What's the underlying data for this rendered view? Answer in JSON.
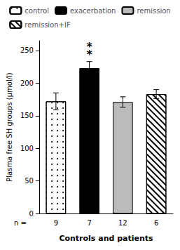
{
  "chart_data": {
    "type": "bar",
    "categories": [
      "control",
      "exacerbation",
      "remission",
      "remission+IF"
    ],
    "values": [
      172,
      223,
      171,
      183
    ],
    "errors": [
      13,
      10,
      8,
      7
    ],
    "colors": [
      "white",
      "black",
      "#bbbbbb",
      "white"
    ],
    "n_label": "n =",
    "n_values": [
      9,
      7,
      12,
      6
    ],
    "ylabel": "Plasma free SH groups (μmol/l)",
    "xlabel": "Controls and patients",
    "ylim": [
      0,
      265
    ],
    "yticks": [
      0,
      50,
      100,
      150,
      200,
      250
    ],
    "annotations": [
      {
        "text": "*",
        "category": "exacerbation"
      },
      {
        "text": "*",
        "category": "exacerbation"
      }
    ],
    "legend": "top",
    "grid": false
  }
}
